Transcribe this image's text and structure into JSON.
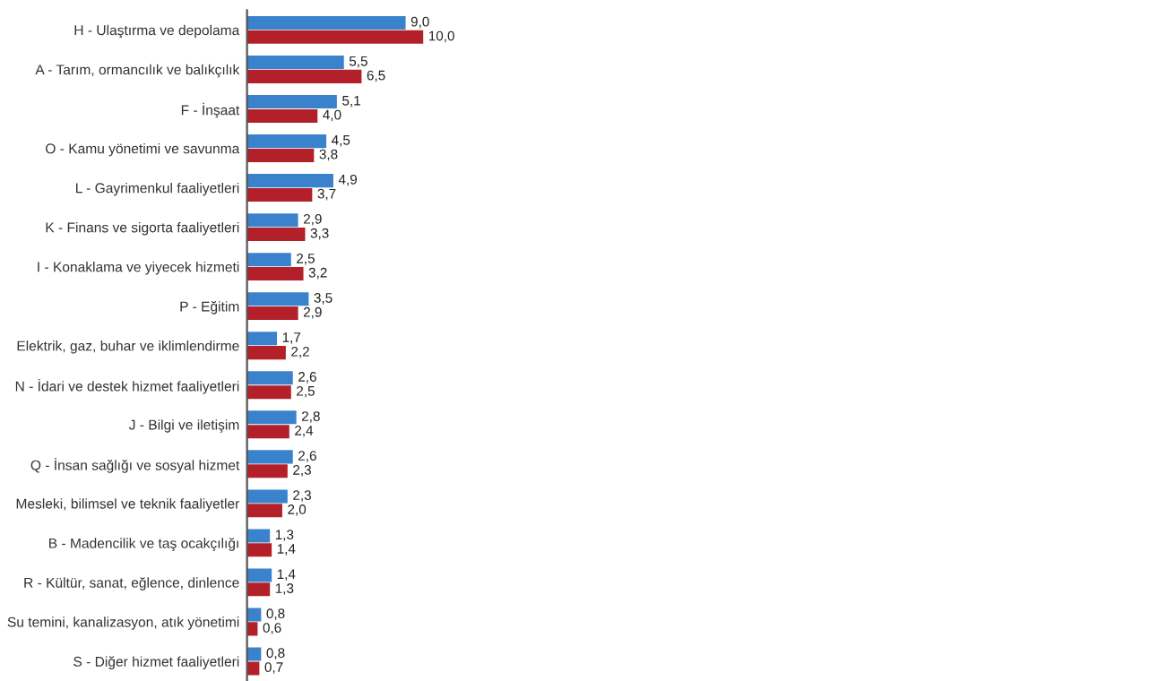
{
  "chart_data": {
    "type": "bar",
    "orientation": "horizontal",
    "categories": [
      "H - Ulaştırma ve depolama",
      "A - Tarım, ormancılık ve balıkçılık",
      "F - İnşaat",
      "O - Kamu yönetimi ve savunma",
      "L - Gayrimenkul faaliyetleri",
      "K - Finans ve sigorta faaliyetleri",
      "I - Konaklama ve yiyecek hizmeti",
      "P - Eğitim",
      "Elektrik, gaz, buhar ve iklimlendirme",
      "N - İdari ve destek hizmet faaliyetleri",
      "J - Bilgi ve iletişim",
      "Q - İnsan sağlığı ve sosyal hizmet",
      "Mesleki, bilimsel ve teknik faaliyetler",
      "B - Madencilik ve taş ocakçılığı",
      "R - Kültür, sanat, eğlence, dinlence",
      "Su temini, kanalizasyon, atık yönetimi",
      "S - Diğer hizmet faaliyetleri"
    ],
    "series": [
      {
        "color": "#3b82cc",
        "values": [
          9.0,
          5.5,
          5.1,
          4.5,
          4.9,
          2.9,
          2.5,
          3.5,
          1.7,
          2.6,
          2.8,
          2.6,
          2.3,
          1.3,
          1.4,
          0.8,
          0.8
        ],
        "value_labels": [
          "9,0",
          "5,5",
          "5,1",
          "4,5",
          "4,9",
          "2,9",
          "2,5",
          "3,5",
          "1,7",
          "2,6",
          "2,8",
          "2,6",
          "2,3",
          "1,3",
          "1,4",
          "0,8",
          "0,8"
        ]
      },
      {
        "color": "#b3202a",
        "values": [
          10.0,
          6.5,
          4.0,
          3.8,
          3.7,
          3.3,
          3.2,
          2.9,
          2.2,
          2.5,
          2.4,
          2.3,
          2.0,
          1.4,
          1.3,
          0.6,
          0.7
        ],
        "value_labels": [
          "10,0",
          "6,5",
          "4,0",
          "3,8",
          "3,7",
          "3,3",
          "3,2",
          "2,9",
          "2,2",
          "2,5",
          "2,4",
          "2,3",
          "2,0",
          "1,4",
          "1,3",
          "0,6",
          "0,7"
        ]
      }
    ],
    "grid": false,
    "legend": false
  }
}
